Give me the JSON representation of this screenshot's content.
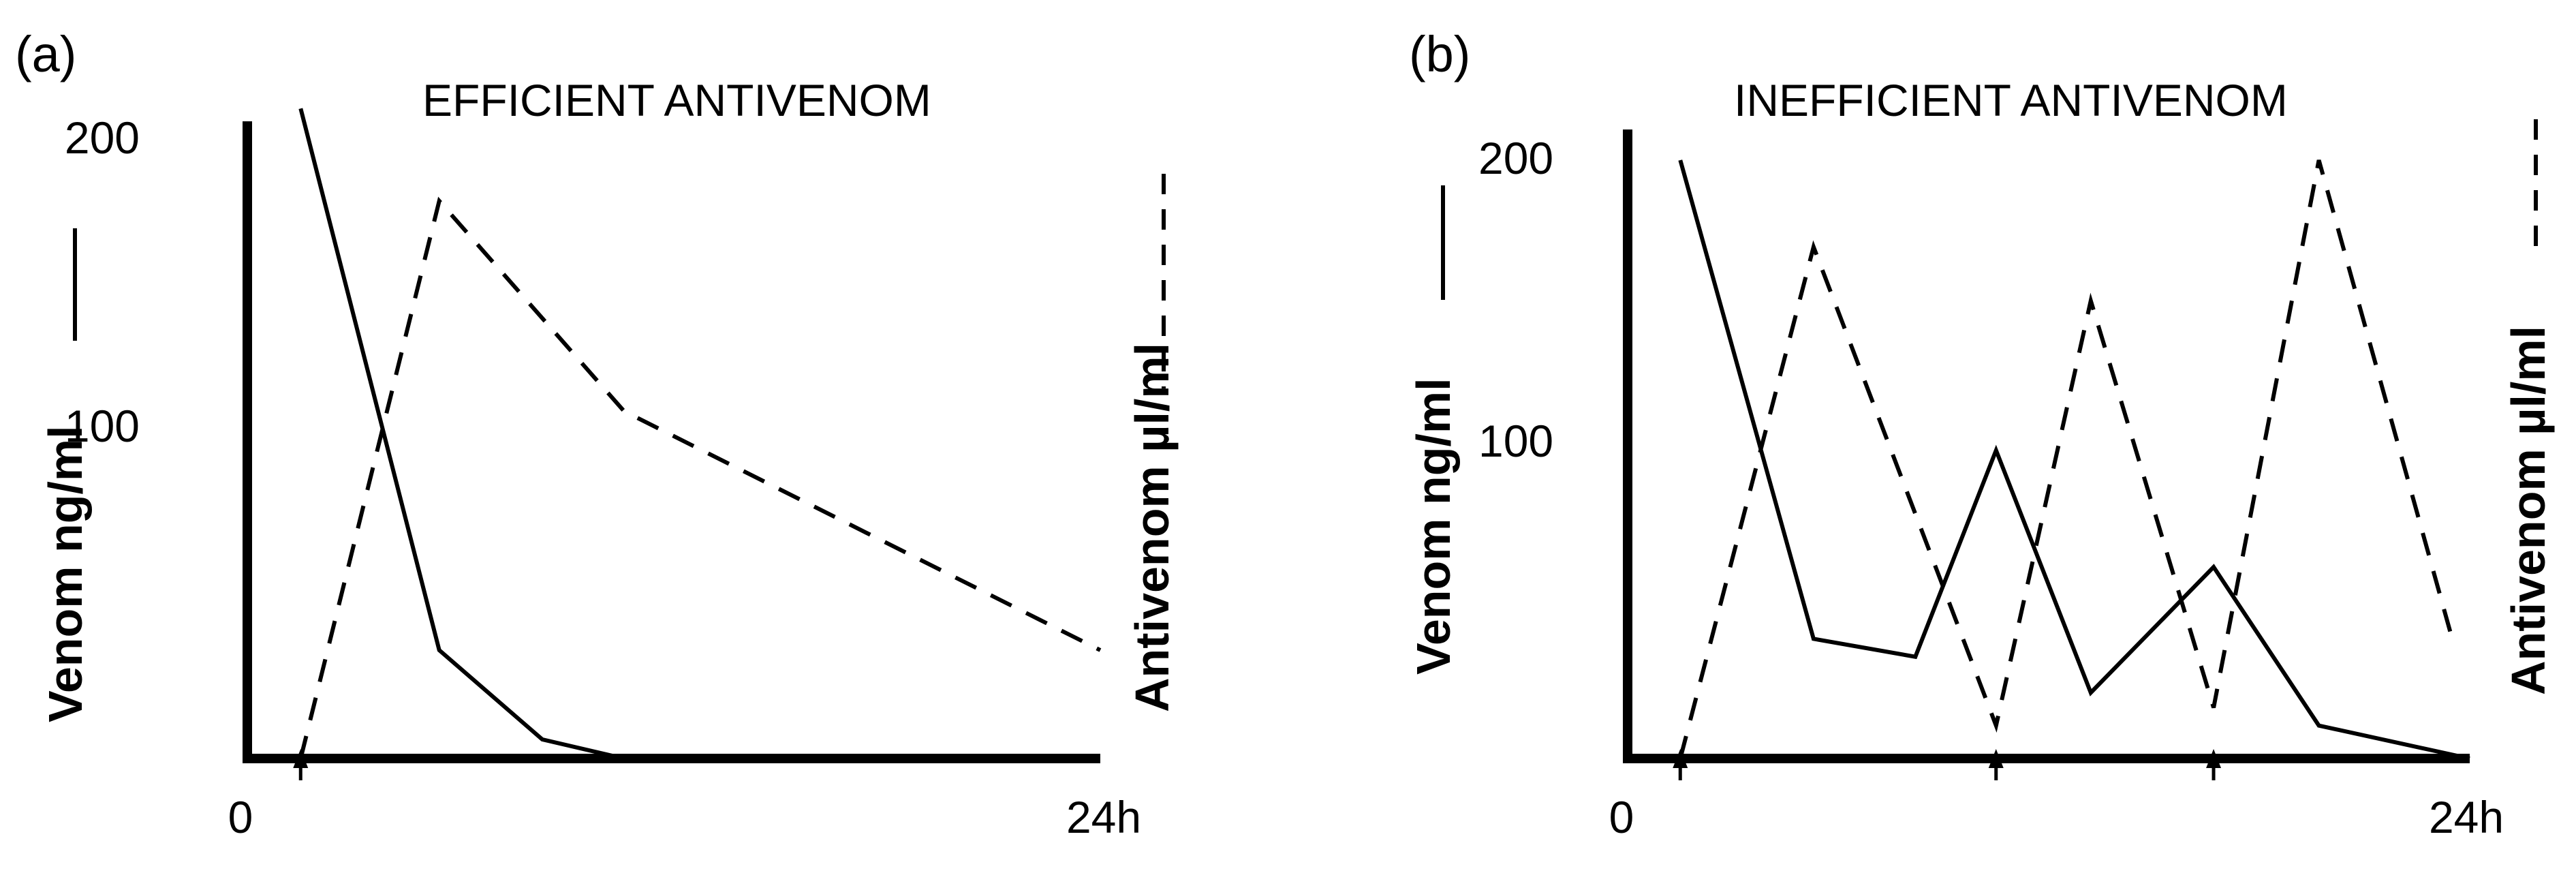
{
  "chart_data": [
    {
      "type": "line",
      "panel_label": "(a)",
      "title": "EFFICIENT ANTIVENOM",
      "ylabel_left": "Venom ng/ml",
      "ylabel_right": "Antivenom µl/ml",
      "left_ticks": [
        "200",
        "100"
      ],
      "x_ticks": [
        "0",
        "24h"
      ],
      "xlim": [
        0,
        24
      ],
      "ylim": [
        0,
        200
      ],
      "grid": false,
      "legend": "none",
      "dose_arrows_at": [
        1.5
      ],
      "series": [
        {
          "style": "solid",
          "x": [
            1.5,
            5.4,
            8.3,
            10.6
          ],
          "y": [
            204,
            34,
            6,
            0
          ]
        },
        {
          "style": "dashed",
          "x": [
            1.5,
            5.4,
            10.6,
            24
          ],
          "y": [
            0,
            175,
            109,
            34
          ]
        }
      ]
    },
    {
      "type": "line",
      "panel_label": "(b)",
      "title": "INEFFICIENT ANTIVENOM",
      "ylabel_left": "Venom ng/ml",
      "ylabel_right": "Antivenom µl/ml",
      "left_ticks": [
        "200",
        "100"
      ],
      "x_ticks": [
        "0",
        "24h"
      ],
      "xlim": [
        0,
        24
      ],
      "ylim": [
        0,
        200
      ],
      "grid": false,
      "legend": "none",
      "dose_arrows_at": [
        1.5,
        10.5,
        16.7
      ],
      "series": [
        {
          "style": "solid",
          "x": [
            1.5,
            5.3,
            8.2,
            10.5,
            13.2,
            16.7,
            19.7,
            24
          ],
          "y": [
            200,
            40,
            34,
            103,
            22,
            64,
            11,
            0
          ]
        },
        {
          "style": "dashed",
          "x": [
            1.5,
            5.3,
            10.5,
            13.2,
            16.7,
            19.7,
            23.5
          ],
          "y": [
            0,
            171,
            11,
            153,
            17,
            200,
            40
          ]
        }
      ]
    }
  ]
}
